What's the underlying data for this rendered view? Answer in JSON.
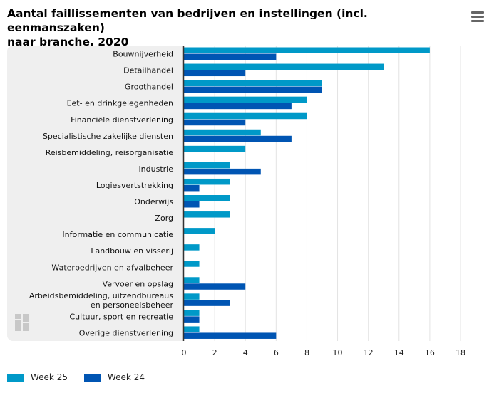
{
  "title_lines": [
    "Aantal faillissementen van bedrijven en instellingen (incl. eenmanszaken)",
    "naar branche, 2020"
  ],
  "menu_icon": "hamburger-menu-icon",
  "logo_icon": "cbs-logo-icon",
  "colors": {
    "week25": "#0099c8",
    "week24": "#0055b3",
    "grid": "#e3e3e3",
    "axis": "#333333"
  },
  "legend": [
    {
      "label": "Week 25",
      "color": "#0099c8"
    },
    {
      "label": "Week 24",
      "color": "#0055b3"
    }
  ],
  "chart_data": {
    "type": "bar",
    "orientation": "horizontal",
    "categories": [
      [
        "Bouwnijverheid"
      ],
      [
        "Detailhandel"
      ],
      [
        "Groothandel"
      ],
      [
        "Eet- en drinkgelegenheden"
      ],
      [
        "Financiële dienstverlening"
      ],
      [
        "Specialistische zakelijke diensten"
      ],
      [
        "Reisbemiddeling, reisorganisatie"
      ],
      [
        "Industrie"
      ],
      [
        "Logiesvertstrekking"
      ],
      [
        "Onderwijs"
      ],
      [
        "Zorg"
      ],
      [
        "Informatie en communicatie"
      ],
      [
        "Landbouw en visserij"
      ],
      [
        "Waterbedrijven en afvalbeheer"
      ],
      [
        "Vervoer en opslag"
      ],
      [
        "Arbeidsbemiddeling, uitzendbureaus",
        "en personeelsbeheer"
      ],
      [
        "Cultuur, sport en recreatie"
      ],
      [
        "Overige dienstverlening"
      ]
    ],
    "series": [
      {
        "name": "Week 25",
        "values": [
          16,
          13,
          9,
          8,
          8,
          5,
          4,
          3,
          3,
          3,
          3,
          2,
          1,
          1,
          1,
          1,
          1,
          1
        ]
      },
      {
        "name": "Week 24",
        "values": [
          6,
          4,
          9,
          7,
          4,
          7,
          0,
          5,
          1,
          1,
          0,
          0,
          0,
          0,
          4,
          3,
          1,
          6
        ]
      }
    ],
    "xlim": [
      0,
      18
    ],
    "xticks": [
      0,
      2,
      4,
      6,
      8,
      10,
      12,
      14,
      16,
      18
    ],
    "grid": true,
    "legend_position": "bottom-left"
  }
}
